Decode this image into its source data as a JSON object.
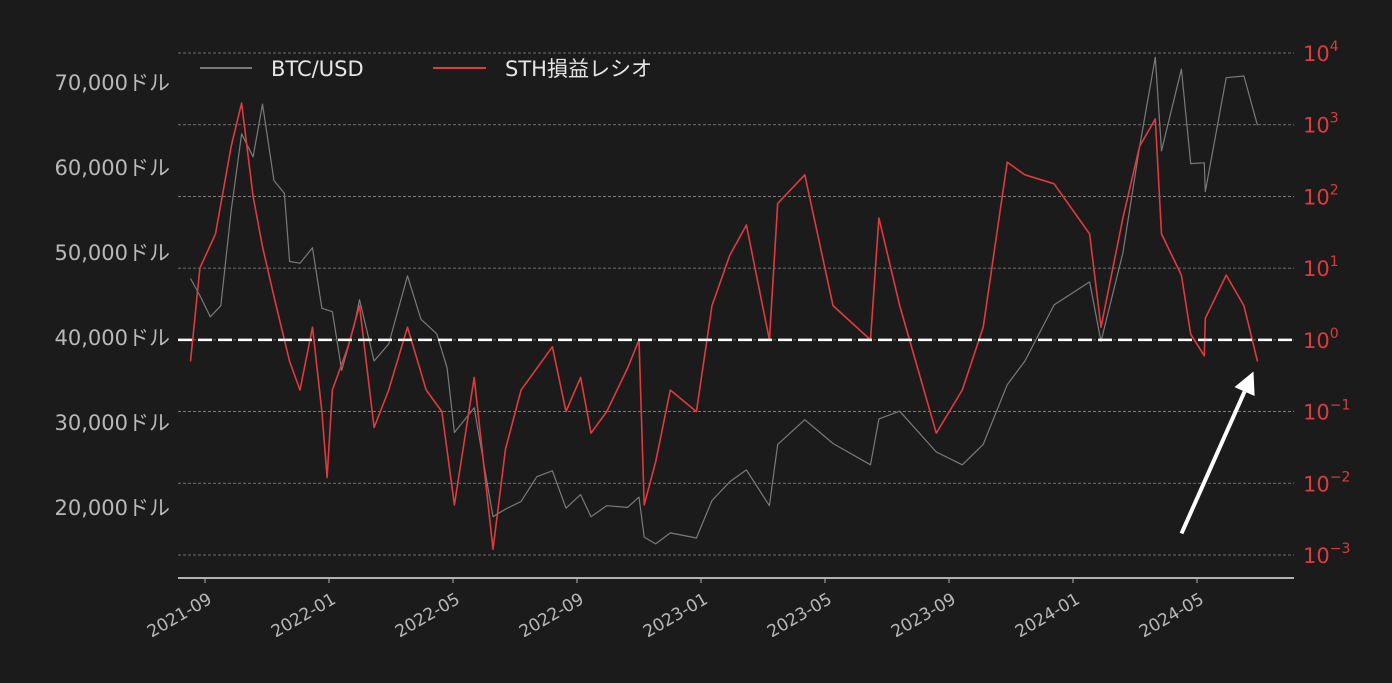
{
  "chart_data": {
    "type": "line",
    "colors": {
      "background": "#1b1b1b",
      "btc": "#7a7a7a",
      "sth": "#e03a3e",
      "threshold": "#ffffff",
      "arrow": "#ffffff",
      "grid": "#8a8a8a"
    },
    "grid": true,
    "legend": {
      "placement": "top-left",
      "entries": [
        "BTC/USD",
        "STH損益レシオ"
      ]
    },
    "x_ticks": [
      "2021-09",
      "2022-01",
      "2022-05",
      "2022-09",
      "2023-01",
      "2023-05",
      "2023-09",
      "2024-01",
      "2024-05"
    ],
    "left_axis": {
      "range": [
        14500,
        73500
      ],
      "ticks": [
        {
          "value": 20000,
          "label": "20,000ドル"
        },
        {
          "value": 30000,
          "label": "30,000ドル"
        },
        {
          "value": 40000,
          "label": "40,000ドル"
        },
        {
          "value": 50000,
          "label": "50,000ドル"
        },
        {
          "value": 60000,
          "label": "60,000ドル"
        },
        {
          "value": 70000,
          "label": "70,000ドル"
        }
      ]
    },
    "right_axis": {
      "scale": "log",
      "range_log10": [
        -3.0,
        4.0
      ],
      "ticks": [
        {
          "exp": 4,
          "base": "10",
          "sup": "4"
        },
        {
          "exp": 3,
          "base": "10",
          "sup": "3"
        },
        {
          "exp": 2,
          "base": "10",
          "sup": "2"
        },
        {
          "exp": 1,
          "base": "10",
          "sup": "1"
        },
        {
          "exp": 0,
          "base": "10",
          "sup": "0"
        },
        {
          "exp": -1,
          "base": "10",
          "sup": "−1"
        },
        {
          "exp": -2,
          "base": "10",
          "sup": "−2"
        },
        {
          "exp": -3,
          "base": "10",
          "sup": "−3"
        }
      ]
    },
    "threshold": {
      "value": 1
    },
    "series": [
      {
        "name": "BTC/USD",
        "axis": "left",
        "points": [
          [
            "2021-09-01",
            47000
          ],
          [
            "2021-09-10",
            45000
          ],
          [
            "2021-09-20",
            42500
          ],
          [
            "2021-09-30",
            43800
          ],
          [
            "2021-10-10",
            55000
          ],
          [
            "2021-10-20",
            64000
          ],
          [
            "2021-10-31",
            61300
          ],
          [
            "2021-11-09",
            67500
          ],
          [
            "2021-11-20",
            58500
          ],
          [
            "2021-11-30",
            57000
          ],
          [
            "2021-12-05",
            49000
          ],
          [
            "2021-12-15",
            48800
          ],
          [
            "2021-12-27",
            50600
          ],
          [
            "2022-01-05",
            43500
          ],
          [
            "2022-01-15",
            43100
          ],
          [
            "2022-01-24",
            36200
          ],
          [
            "2022-02-05",
            41500
          ],
          [
            "2022-02-10",
            44500
          ],
          [
            "2022-02-24",
            37300
          ],
          [
            "2022-03-10",
            39300
          ],
          [
            "2022-03-28",
            47300
          ],
          [
            "2022-04-10",
            42200
          ],
          [
            "2022-04-25",
            40500
          ],
          [
            "2022-05-05",
            36500
          ],
          [
            "2022-05-12",
            28900
          ],
          [
            "2022-05-31",
            31800
          ],
          [
            "2022-06-13",
            22500
          ],
          [
            "2022-06-18",
            19000
          ],
          [
            "2022-06-30",
            19900
          ],
          [
            "2022-07-15",
            20800
          ],
          [
            "2022-07-30",
            23700
          ],
          [
            "2022-08-14",
            24400
          ],
          [
            "2022-08-27",
            20000
          ],
          [
            "2022-09-10",
            21600
          ],
          [
            "2022-09-20",
            19000
          ],
          [
            "2022-10-05",
            20300
          ],
          [
            "2022-10-25",
            20100
          ],
          [
            "2022-11-05",
            21300
          ],
          [
            "2022-11-10",
            16600
          ],
          [
            "2022-11-21",
            15800
          ],
          [
            "2022-12-05",
            17100
          ],
          [
            "2022-12-30",
            16500
          ],
          [
            "2023-01-14",
            20900
          ],
          [
            "2023-01-31",
            23100
          ],
          [
            "2023-02-16",
            24500
          ],
          [
            "2023-03-10",
            20300
          ],
          [
            "2023-03-18",
            27500
          ],
          [
            "2023-04-13",
            30400
          ],
          [
            "2023-05-10",
            27600
          ],
          [
            "2023-06-15",
            25100
          ],
          [
            "2023-06-23",
            30500
          ],
          [
            "2023-07-13",
            31400
          ],
          [
            "2023-08-17",
            26600
          ],
          [
            "2023-09-11",
            25100
          ],
          [
            "2023-10-01",
            27500
          ],
          [
            "2023-10-24",
            34500
          ],
          [
            "2023-11-10",
            37300
          ],
          [
            "2023-12-08",
            43900
          ],
          [
            "2024-01-11",
            46600
          ],
          [
            "2024-01-22",
            39600
          ],
          [
            "2024-02-12",
            50000
          ],
          [
            "2024-02-28",
            62500
          ],
          [
            "2024-03-14",
            73000
          ],
          [
            "2024-03-20",
            62000
          ],
          [
            "2024-04-08",
            71600
          ],
          [
            "2024-04-17",
            60500
          ],
          [
            "2024-04-30",
            60600
          ],
          [
            "2024-05-01",
            57200
          ],
          [
            "2024-05-21",
            70600
          ],
          [
            "2024-06-07",
            70800
          ],
          [
            "2024-06-20",
            65000
          ]
        ]
      },
      {
        "name": "STH損益レシオ",
        "axis": "right",
        "points": [
          [
            "2021-09-01",
            0.5
          ],
          [
            "2021-09-10",
            10
          ],
          [
            "2021-09-25",
            30
          ],
          [
            "2021-10-10",
            500
          ],
          [
            "2021-10-20",
            2000
          ],
          [
            "2021-10-31",
            100
          ],
          [
            "2021-11-09",
            20
          ],
          [
            "2021-11-20",
            4
          ],
          [
            "2021-12-05",
            0.5
          ],
          [
            "2021-12-15",
            0.2
          ],
          [
            "2021-12-27",
            1.5
          ],
          [
            "2022-01-05",
            0.1
          ],
          [
            "2022-01-10",
            0.012
          ],
          [
            "2022-01-15",
            0.2
          ],
          [
            "2022-01-30",
            0.8
          ],
          [
            "2022-02-10",
            3
          ],
          [
            "2022-02-24",
            0.06
          ],
          [
            "2022-03-10",
            0.2
          ],
          [
            "2022-03-28",
            1.5
          ],
          [
            "2022-04-15",
            0.2
          ],
          [
            "2022-04-30",
            0.1
          ],
          [
            "2022-05-12",
            0.005
          ],
          [
            "2022-05-31",
            0.3
          ],
          [
            "2022-06-18",
            0.0012
          ],
          [
            "2022-06-30",
            0.03
          ],
          [
            "2022-07-15",
            0.2
          ],
          [
            "2022-08-14",
            0.8
          ],
          [
            "2022-08-27",
            0.1
          ],
          [
            "2022-09-10",
            0.3
          ],
          [
            "2022-09-20",
            0.05
          ],
          [
            "2022-10-05",
            0.1
          ],
          [
            "2022-10-25",
            0.4
          ],
          [
            "2022-11-05",
            1
          ],
          [
            "2022-11-10",
            0.005
          ],
          [
            "2022-11-21",
            0.02
          ],
          [
            "2022-12-05",
            0.2
          ],
          [
            "2022-12-30",
            0.1
          ],
          [
            "2023-01-14",
            3
          ],
          [
            "2023-01-31",
            15
          ],
          [
            "2023-02-16",
            40
          ],
          [
            "2023-03-10",
            1
          ],
          [
            "2023-03-18",
            80
          ],
          [
            "2023-04-13",
            200
          ],
          [
            "2023-05-10",
            3
          ],
          [
            "2023-06-15",
            1
          ],
          [
            "2023-06-23",
            50
          ],
          [
            "2023-07-13",
            3
          ],
          [
            "2023-08-17",
            0.05
          ],
          [
            "2023-09-11",
            0.2
          ],
          [
            "2023-10-01",
            1.5
          ],
          [
            "2023-10-24",
            300
          ],
          [
            "2023-11-10",
            200
          ],
          [
            "2023-12-08",
            150
          ],
          [
            "2024-01-11",
            30
          ],
          [
            "2024-01-22",
            1.5
          ],
          [
            "2024-02-12",
            50
          ],
          [
            "2024-02-28",
            500
          ],
          [
            "2024-03-14",
            1200
          ],
          [
            "2024-03-20",
            30
          ],
          [
            "2024-04-08",
            8
          ],
          [
            "2024-04-17",
            1.2
          ],
          [
            "2024-04-30",
            0.6
          ],
          [
            "2024-05-01",
            2
          ],
          [
            "2024-05-21",
            8
          ],
          [
            "2024-06-07",
            3
          ],
          [
            "2024-06-20",
            0.5
          ]
        ]
      }
    ],
    "annotation": {
      "type": "arrow",
      "points_to": [
        "2024-06-20",
        0.5
      ]
    }
  }
}
